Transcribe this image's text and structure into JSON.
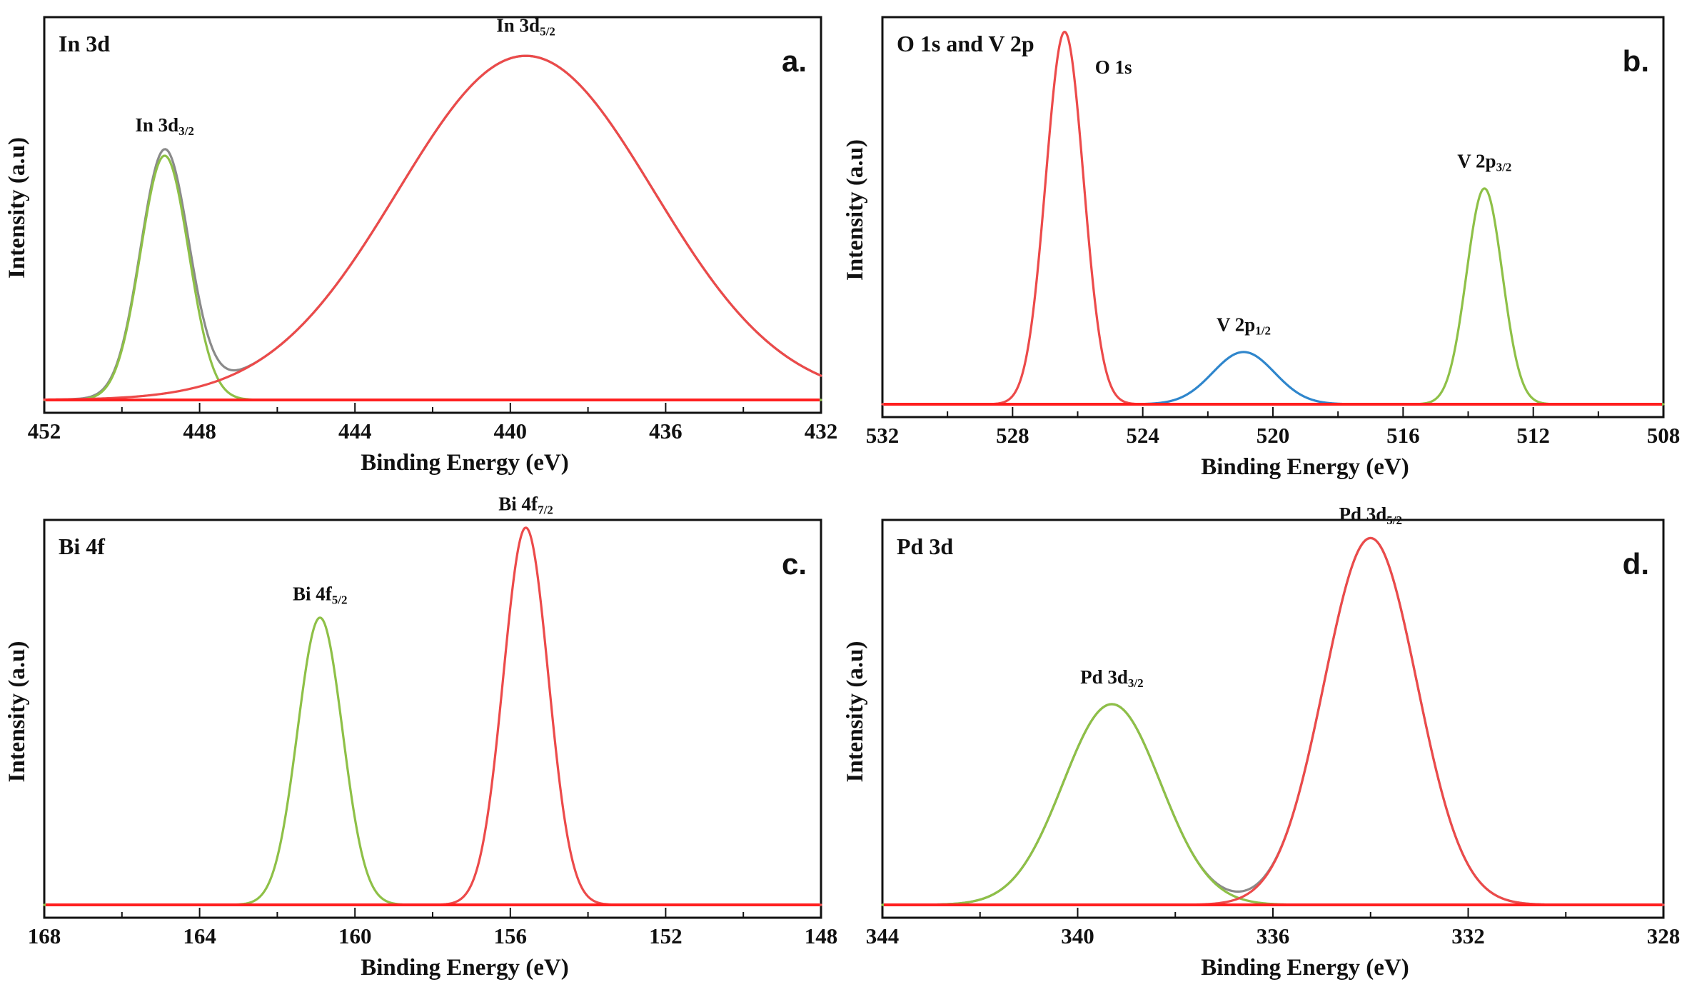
{
  "colors": {
    "red": "#ec4a4a",
    "green": "#8ec047",
    "blue": "#2f86cc",
    "envelope": "#8a8a8a",
    "baseline": "#ff1f1f"
  },
  "chart_data": [
    {
      "type": "line",
      "panel": "a",
      "title": "In 3d",
      "letter": "a.",
      "xlabel": "Binding Energy (eV)",
      "ylabel": "Intensity (a.u)",
      "xlim": [
        452,
        432
      ],
      "ylim": [
        0,
        1.1
      ],
      "xticks": [
        452,
        448,
        444,
        440,
        436,
        432
      ],
      "grid": false,
      "series": [
        {
          "name": "In 3d3/2",
          "color": "green",
          "center": 448.9,
          "height": 0.71,
          "width": 0.62,
          "x": [
            452,
            432
          ]
        },
        {
          "name": "In 3d5/2",
          "color": "red",
          "center": 439.6,
          "height": 1.0,
          "width": 3.3,
          "x": [
            452,
            432
          ]
        }
      ],
      "envelope": true,
      "labels": [
        {
          "main": "In 3d",
          "sub": "3/2",
          "x": 448.9,
          "y": 0.78
        },
        {
          "main": "In 3d",
          "sub": "5/2",
          "x": 439.6,
          "y": 1.07
        }
      ]
    },
    {
      "type": "line",
      "panel": "b",
      "title": "O 1s and V 2p",
      "letter": "b.",
      "xlabel": "Binding Energy (eV)",
      "ylabel": "Intensity (a.u)",
      "xlim": [
        532,
        508
      ],
      "ylim": [
        0,
        1.1
      ],
      "xticks": [
        532,
        528,
        524,
        520,
        516,
        512,
        508
      ],
      "grid": false,
      "series": [
        {
          "name": "O 1s",
          "color": "red",
          "center": 526.4,
          "height": 1.07,
          "width": 0.58,
          "x": [
            532,
            522
          ]
        },
        {
          "name": "V 2p1/2",
          "color": "blue",
          "center": 520.9,
          "height": 0.15,
          "width": 0.95,
          "x": [
            524,
            517.5
          ]
        },
        {
          "name": "V 2p3/2",
          "color": "green",
          "center": 513.5,
          "height": 0.62,
          "width": 0.55,
          "x": [
            518,
            508
          ]
        }
      ],
      "envelope": false,
      "labels": [
        {
          "main": "O 1s",
          "sub": "",
          "x": 524.9,
          "y": 0.95
        },
        {
          "main": "V 2p",
          "sub": "1/2",
          "x": 520.9,
          "y": 0.21
        },
        {
          "main": "V 2p",
          "sub": "3/2",
          "x": 513.5,
          "y": 0.68
        }
      ]
    },
    {
      "type": "line",
      "panel": "c",
      "title": "Bi 4f",
      "letter": "c.",
      "xlabel": "Binding Energy (eV)",
      "ylabel": "Intensity (a.u)",
      "xlim": [
        168,
        148
      ],
      "ylim": [
        0,
        1.1
      ],
      "xticks": [
        168,
        164,
        160,
        156,
        152,
        148
      ],
      "grid": false,
      "series": [
        {
          "name": "Bi 4f5/2",
          "color": "green",
          "center": 160.9,
          "height": 0.83,
          "width": 0.58,
          "x": [
            168,
            156
          ]
        },
        {
          "name": "Bi 4f7/2",
          "color": "red",
          "center": 155.6,
          "height": 1.09,
          "width": 0.58,
          "x": [
            159.5,
            148
          ]
        }
      ],
      "envelope": false,
      "labels": [
        {
          "main": "Bi 4f",
          "sub": "5/2",
          "x": 160.9,
          "y": 0.88
        },
        {
          "main": "Bi 4f",
          "sub": "7/2",
          "x": 155.6,
          "y": 1.14
        }
      ]
    },
    {
      "type": "line",
      "panel": "d",
      "title": "Pd 3d",
      "letter": "d.",
      "xlabel": "Binding Energy (eV)",
      "ylabel": "Intensity (a.u)",
      "xlim": [
        344,
        328
      ],
      "ylim": [
        0,
        1.1
      ],
      "xticks": [
        344,
        340,
        336,
        332,
        328
      ],
      "grid": false,
      "series": [
        {
          "name": "Pd 3d3/2",
          "color": "green",
          "center": 339.3,
          "height": 0.58,
          "width": 1.0,
          "x": [
            344,
            332
          ]
        },
        {
          "name": "Pd 3d5/2",
          "color": "red",
          "center": 334.0,
          "height": 1.06,
          "width": 0.95,
          "x": [
            340,
            328
          ]
        }
      ],
      "envelope": true,
      "labels": [
        {
          "main": "Pd 3d",
          "sub": "3/2",
          "x": 339.3,
          "y": 0.64
        },
        {
          "main": "Pd 3d",
          "sub": "5/2",
          "x": 334.0,
          "y": 1.11
        }
      ]
    }
  ]
}
